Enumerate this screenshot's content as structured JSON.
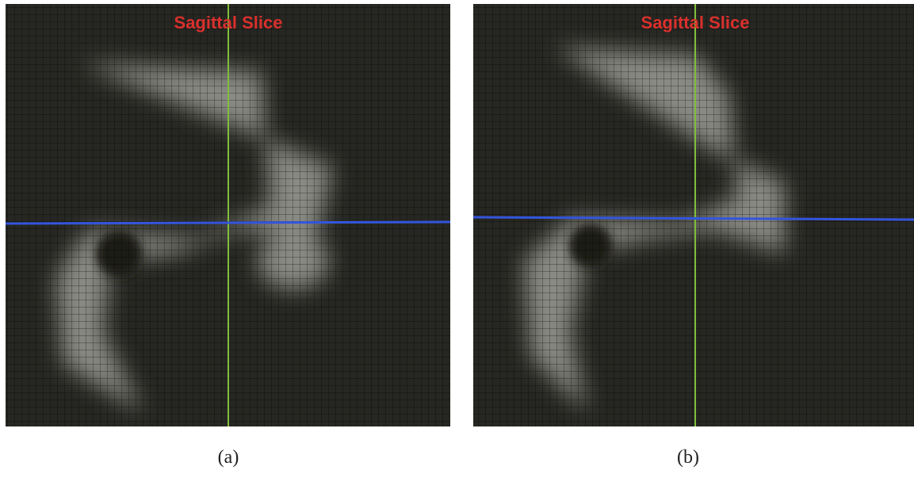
{
  "panels": [
    {
      "title": "Sagittal Slice",
      "caption": "(a)"
    },
    {
      "title": "Sagittal Slice",
      "caption": "(b)"
    }
  ]
}
